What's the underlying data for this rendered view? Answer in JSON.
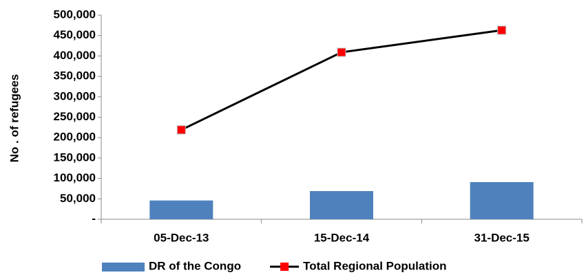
{
  "chart_data": {
    "type": "combo",
    "y_label": "No . of refugees",
    "categories": [
      "05-Dec-13",
      "15-Dec-14",
      "31-Dec-15"
    ],
    "series": [
      {
        "name": "DR of the Congo",
        "type": "bar",
        "color": "#4f81bd",
        "values": [
          46000,
          69000,
          91000
        ]
      },
      {
        "name": "Total Regional Population",
        "type": "line",
        "color": "#000000",
        "marker_color": "#ff0000",
        "values": [
          219000,
          409000,
          463000
        ]
      }
    ],
    "ylim": [
      0,
      500000
    ],
    "yticks": [
      {
        "value": 0,
        "label": "-"
      },
      {
        "value": 50000,
        "label": "50,000"
      },
      {
        "value": 100000,
        "label": "100,000"
      },
      {
        "value": 150000,
        "label": "150,000"
      },
      {
        "value": 200000,
        "label": "200,000"
      },
      {
        "value": 250000,
        "label": "250,000"
      },
      {
        "value": 300000,
        "label": "300,000"
      },
      {
        "value": 350000,
        "label": "350,000"
      },
      {
        "value": 400000,
        "label": "400,000"
      },
      {
        "value": 450000,
        "label": "450,000"
      },
      {
        "value": 500000,
        "label": "500,000"
      }
    ],
    "grid": false,
    "legend": "bottom"
  }
}
